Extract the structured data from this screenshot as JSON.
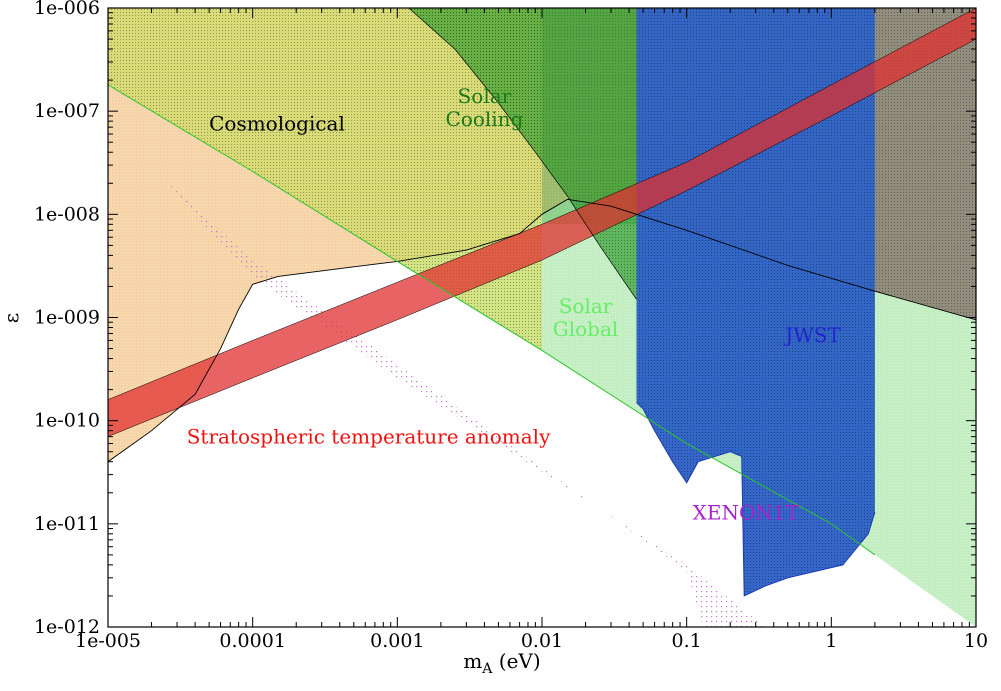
{
  "chart_data": {
    "type": "area",
    "title": "",
    "xlabel": {
      "main": "m",
      "sub": "A",
      "unit": " (eV)"
    },
    "ylabel": "ε",
    "x_scale": "log",
    "y_scale": "log",
    "xlim": [
      1e-05,
      10
    ],
    "ylim": [
      1e-12,
      1e-06
    ],
    "grid": false,
    "x_ticks": [
      {
        "value": 1e-05,
        "label": "1e-005"
      },
      {
        "value": 0.0001,
        "label": "0.0001"
      },
      {
        "value": 0.001,
        "label": "0.001"
      },
      {
        "value": 0.01,
        "label": "0.01"
      },
      {
        "value": 0.1,
        "label": "0.1"
      },
      {
        "value": 1,
        "label": "1"
      },
      {
        "value": 10,
        "label": "10"
      }
    ],
    "y_ticks": [
      {
        "value": 1e-12,
        "label": "1e-012"
      },
      {
        "value": 1e-11,
        "label": "1e-011"
      },
      {
        "value": 1e-10,
        "label": "1e-010"
      },
      {
        "value": 1e-09,
        "label": "1e-009"
      },
      {
        "value": 1e-08,
        "label": "1e-008"
      },
      {
        "value": 1e-07,
        "label": "1e-007"
      },
      {
        "value": 1e-06,
        "label": "1e-006"
      }
    ],
    "colors": {
      "cosmological": "#f0b060",
      "cosmo_olive": "#d8e070",
      "solar_cooling": "#2a9a2a",
      "solar_global": "#8fe08f",
      "jwst": "#2a5fc8",
      "stratospheric": "#e03030",
      "xenon1t": "#c060d0",
      "gray": "#7a7a7a"
    },
    "series": [
      {
        "name": "Cosmological",
        "label_color": "#000000",
        "label_at": [
          5e-05,
          6.5e-08
        ],
        "boundary": [
          [
            1e-05,
            4e-11
          ],
          [
            2e-05,
            8e-11
          ],
          [
            4e-05,
            1.8e-10
          ],
          [
            6e-05,
            5e-10
          ],
          [
            8e-05,
            1.2e-09
          ],
          [
            0.0001,
            2.1e-09
          ],
          [
            0.00015,
            2.5e-09
          ],
          [
            0.0005,
            3.1e-09
          ],
          [
            0.001,
            3.5e-09
          ],
          [
            0.003,
            4.5e-09
          ],
          [
            0.007,
            6.5e-09
          ],
          [
            0.01,
            1e-08
          ],
          [
            0.015,
            1.4e-08
          ],
          [
            0.03,
            1.2e-08
          ],
          [
            0.1,
            7e-09
          ],
          [
            0.5,
            3.2e-09
          ],
          [
            2,
            1.8e-09
          ],
          [
            10,
            9.5e-10
          ]
        ]
      },
      {
        "name": "Solar\nCooling",
        "label_color": "#1a7a1a",
        "label_at": [
          0.004,
          1.2e-07
        ],
        "boundary": [
          [
            0.0012,
            1e-06
          ],
          [
            0.0025,
            4e-07
          ],
          [
            0.005,
            1.2e-07
          ],
          [
            0.009,
            4e-08
          ],
          [
            0.015,
            1.5e-08
          ],
          [
            0.025,
            5e-09
          ],
          [
            0.035,
            2.5e-09
          ],
          [
            0.045,
            1.5e-09
          ]
        ]
      },
      {
        "name": "Solar\nGlobal",
        "label_color": "#66ee66",
        "label_at": [
          0.02,
          1.1e-09
        ],
        "boundary": [
          [
            1e-05,
            1.8e-07
          ],
          [
            0.0001,
            2.6e-08
          ],
          [
            0.001,
            3.5e-09
          ],
          [
            0.01,
            4.8e-10
          ],
          [
            0.1,
            6e-11
          ],
          [
            1,
            1e-11
          ],
          [
            2,
            5e-12
          ]
        ]
      },
      {
        "name": "JWST",
        "label_color": "#2222cc",
        "label_at": [
          0.48,
          5.8e-10
        ],
        "boundary": [
          [
            0.045,
            1.5e-10
          ],
          [
            0.05,
            1.3e-10
          ],
          [
            0.06,
            8e-11
          ],
          [
            0.08,
            4e-11
          ],
          [
            0.1,
            2.5e-11
          ],
          [
            0.12,
            4e-11
          ],
          [
            0.2,
            5e-11
          ],
          [
            0.24,
            4.5e-11
          ],
          [
            0.25,
            2e-12
          ],
          [
            0.35,
            2.5e-12
          ],
          [
            0.5,
            3e-12
          ],
          [
            0.8,
            3.5e-12
          ],
          [
            1.2,
            4e-12
          ],
          [
            1.8,
            8e-12
          ],
          [
            2,
            1.3e-11
          ]
        ]
      },
      {
        "name": "Stratospheric temperature anomaly",
        "label_color": "#ee1111",
        "label_at": [
          3.5e-05,
          6e-11
        ],
        "band_lower": [
          [
            1e-05,
            7e-11
          ],
          [
            0.0001,
            2.6e-10
          ],
          [
            0.001,
            9.5e-10
          ],
          [
            0.01,
            3.6e-09
          ],
          [
            0.1,
            1.7e-08
          ],
          [
            1,
            9e-08
          ],
          [
            10,
            5e-07
          ]
        ],
        "band_upper": [
          [
            1e-05,
            1.6e-10
          ],
          [
            0.0001,
            6e-10
          ],
          [
            0.001,
            2.2e-09
          ],
          [
            0.01,
            8e-09
          ],
          [
            0.1,
            3.2e-08
          ],
          [
            1,
            1.8e-07
          ],
          [
            10,
            1e-06
          ]
        ]
      },
      {
        "name": "XENON1T",
        "label_color": "#aa22cc",
        "label_at": [
          0.11,
          1.1e-11
        ],
        "band_upper": [
          [
            0.0001,
            2.5e-09
          ],
          [
            0.001,
            2.6e-10
          ],
          [
            0.01,
            3.2e-11
          ],
          [
            0.1,
            4e-12
          ],
          [
            0.35,
            1e-12
          ]
        ],
        "band_lower": [
          [
            2e-05,
            2.8e-08
          ],
          [
            0.0001,
            3.6e-09
          ],
          [
            0.001,
            3.5e-10
          ],
          [
            0.01,
            3.5e-11
          ],
          [
            0.1,
            3.5e-12
          ],
          [
            0.13,
            1e-12
          ]
        ]
      }
    ]
  }
}
